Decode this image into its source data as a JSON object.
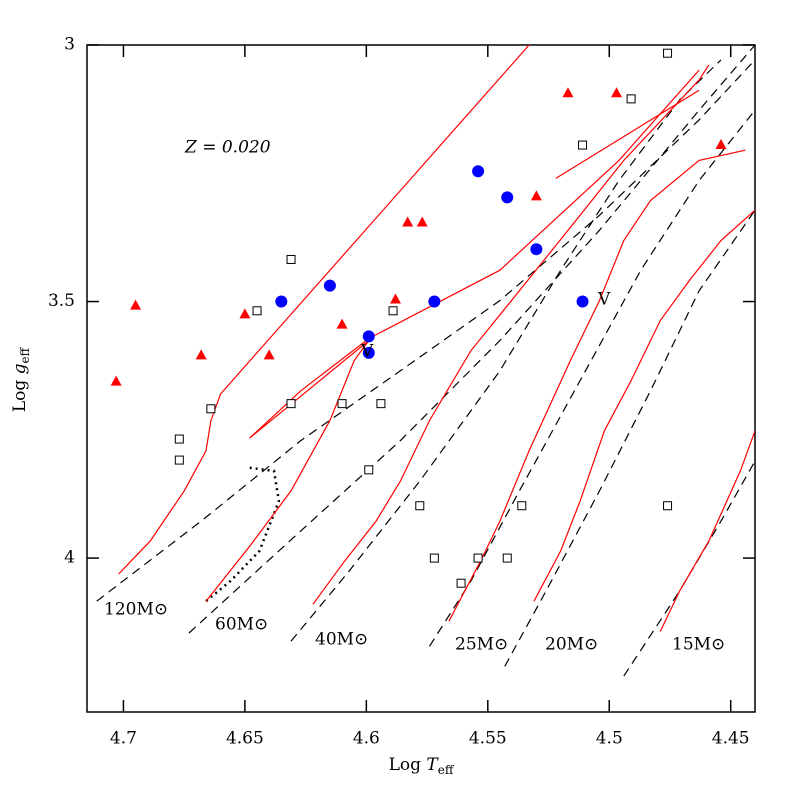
{
  "chart_data": {
    "type": "scatter",
    "xlabel": [
      "Log ",
      "T",
      "eff"
    ],
    "ylabel": [
      "Log ",
      "g",
      "eff"
    ],
    "xlim": [
      4.715,
      4.44
    ],
    "ylim": [
      3,
      4.3
    ],
    "xticks": [
      4.7,
      4.65,
      4.6,
      4.55,
      4.5,
      4.45
    ],
    "yticks": [
      3,
      3.5,
      4
    ],
    "annotations": [
      "Z = 0.020",
      "V",
      "V",
      "120M⊙",
      "60M⊙",
      "40M⊙",
      "25M⊙",
      "20M⊙",
      "15M⊙"
    ],
    "series": [
      {
        "mode": "line",
        "style": "dashed",
        "color": "#000000",
        "x": [
          4.711,
          4.668,
          4.627,
          4.586,
          4.545,
          4.504,
          4.463,
          4.44
        ],
        "y": [
          4.084,
          3.928,
          3.771,
          3.635,
          3.498,
          3.332,
          3.146,
          3.029
        ]
      },
      {
        "mode": "line",
        "style": "dashed",
        "color": "#000000",
        "x": [
          4.673,
          4.627,
          4.586,
          4.545,
          4.504,
          4.463,
          4.44
        ],
        "y": [
          4.146,
          3.947,
          3.771,
          3.576,
          3.361,
          3.127,
          3.0
        ]
      },
      {
        "mode": "line",
        "style": "dashed",
        "color": "#000000",
        "x": [
          4.631,
          4.607,
          4.578,
          4.545,
          4.52,
          4.496,
          4.471,
          4.454
        ],
        "y": [
          4.162,
          4.025,
          3.85,
          3.635,
          3.439,
          3.264,
          3.107,
          3.029
        ]
      },
      {
        "mode": "line",
        "style": "dashed",
        "color": "#000000",
        "x": [
          4.574,
          4.557,
          4.537,
          4.512,
          4.487,
          4.463,
          4.44
        ],
        "y": [
          4.172,
          4.045,
          3.869,
          3.654,
          3.439,
          3.264,
          3.127
        ]
      },
      {
        "mode": "line",
        "style": "dashed",
        "color": "#000000",
        "x": [
          4.543,
          4.526,
          4.504,
          4.483,
          4.463,
          4.44
        ],
        "y": [
          4.211,
          4.064,
          3.869,
          3.674,
          3.479,
          3.322
        ]
      },
      {
        "mode": "line",
        "style": "dashed",
        "color": "#000000",
        "x": [
          4.494,
          4.471,
          4.454,
          4.44
        ],
        "y": [
          4.23,
          4.064,
          3.928,
          3.811
        ]
      },
      {
        "mode": "line",
        "style": "dotted",
        "color": "#000000",
        "x": [
          4.648,
          4.638,
          4.636,
          4.644,
          4.656,
          4.666
        ],
        "y": [
          3.824,
          3.83,
          3.889,
          3.986,
          4.045,
          4.084
        ]
      },
      {
        "mode": "line",
        "style": "solid",
        "color": "#ff0000",
        "x": [
          4.702,
          4.689,
          4.675,
          4.666,
          4.664,
          4.66,
          4.533
        ],
        "y": [
          4.031,
          3.967,
          3.869,
          3.791,
          3.732,
          3.68,
          3.0
        ]
      },
      {
        "mode": "line",
        "style": "solid",
        "color": "#ff0000",
        "x": [
          4.666,
          4.648,
          4.631,
          4.615,
          4.605,
          4.599,
          4.648,
          4.627,
          4.599,
          4.545,
          4.496,
          4.463
        ],
        "y": [
          4.084,
          3.977,
          3.869,
          3.732,
          3.615,
          3.576,
          3.766,
          3.674,
          3.572,
          3.439,
          3.225,
          3.049
        ]
      },
      {
        "mode": "line",
        "style": "solid",
        "color": "#ff0000",
        "x": [
          4.622,
          4.609,
          4.596,
          4.586,
          4.574,
          4.557,
          4.537,
          4.512,
          4.494,
          4.463,
          4.459
        ],
        "y": [
          4.09,
          4.006,
          3.928,
          3.85,
          3.732,
          3.596,
          3.479,
          3.332,
          3.225,
          3.068,
          3.039
        ]
      },
      {
        "mode": "line",
        "style": "solid",
        "color": "#ff0000",
        "x": [
          4.522,
          4.463
        ],
        "y": [
          3.26,
          3.088
        ]
      },
      {
        "mode": "line",
        "style": "solid",
        "color": "#ff0000",
        "x": [
          4.566,
          4.553,
          4.545,
          4.533,
          4.516,
          4.504,
          4.494,
          4.483,
          4.463,
          4.444
        ],
        "y": [
          4.123,
          4.006,
          3.928,
          3.791,
          3.615,
          3.498,
          3.381,
          3.303,
          3.225,
          3.205
        ]
      },
      {
        "mode": "line",
        "style": "solid",
        "color": "#ff0000",
        "x": [
          4.531,
          4.52,
          4.512,
          4.502,
          4.491,
          4.479,
          4.467,
          4.454,
          4.44
        ],
        "y": [
          4.084,
          3.986,
          3.889,
          3.752,
          3.654,
          3.537,
          3.459,
          3.381,
          3.322
        ]
      },
      {
        "mode": "line",
        "style": "solid",
        "color": "#ff0000",
        "x": [
          4.479,
          4.471,
          4.459,
          4.446,
          4.44
        ],
        "y": [
          4.143,
          4.064,
          3.967,
          3.83,
          3.752
        ]
      },
      {
        "mode": "markers",
        "marker": "square",
        "color": "#000000",
        "x": [
          4.677,
          4.677,
          4.664,
          4.645,
          4.631,
          4.631,
          4.61,
          4.594,
          4.589,
          4.599,
          4.578,
          4.572,
          4.554,
          4.542,
          4.561,
          4.536,
          4.511,
          4.491,
          4.476,
          4.476
        ],
        "y": [
          3.768,
          3.809,
          3.709,
          3.518,
          3.418,
          3.699,
          3.699,
          3.699,
          3.518,
          3.828,
          3.898,
          4.0,
          4.0,
          4.0,
          4.049,
          3.898,
          3.195,
          3.105,
          3.016,
          3.898
        ]
      },
      {
        "mode": "markers",
        "marker": "triangle",
        "color": "#ff0000",
        "x": [
          4.703,
          4.695,
          4.668,
          4.65,
          4.64,
          4.61,
          4.588,
          4.583,
          4.577,
          4.53,
          4.517,
          4.497,
          4.454
        ],
        "y": [
          3.656,
          3.508,
          3.605,
          3.525,
          3.605,
          3.545,
          3.496,
          3.346,
          3.346,
          3.295,
          3.094,
          3.094,
          3.195
        ]
      },
      {
        "mode": "markers",
        "marker": "circle",
        "color": "#0000ff",
        "x": [
          4.635,
          4.615,
          4.599,
          4.599,
          4.572,
          4.554,
          4.542,
          4.53,
          4.511
        ],
        "y": [
          3.5,
          3.469,
          3.568,
          3.6,
          3.5,
          3.246,
          3.297,
          3.398,
          3.5
        ]
      }
    ]
  }
}
